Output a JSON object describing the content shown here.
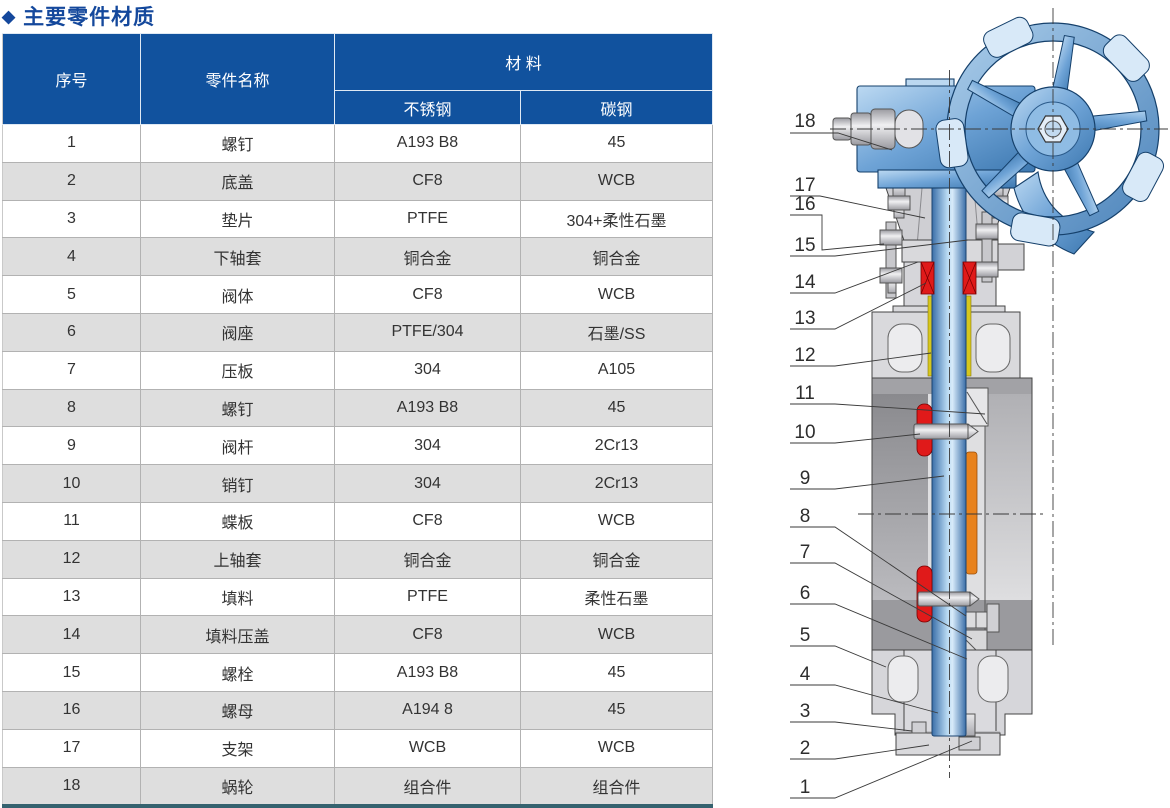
{
  "page": {
    "title_bullet": "◆",
    "title": "主要零件材质"
  },
  "table": {
    "col_no": "序号",
    "col_part": "零件名称",
    "col_material": "材  料",
    "col_stainless": "不锈钢",
    "col_carbon": "碳钢",
    "rows": [
      {
        "no": "1",
        "part": "螺钉",
        "ss": "A193 B8",
        "cs": "45"
      },
      {
        "no": "2",
        "part": "底盖",
        "ss": "CF8",
        "cs": "WCB"
      },
      {
        "no": "3",
        "part": "垫片",
        "ss": "PTFE",
        "cs": "304+柔性石墨"
      },
      {
        "no": "4",
        "part": "下轴套",
        "ss": "铜合金",
        "cs": "铜合金"
      },
      {
        "no": "5",
        "part": "阀体",
        "ss": "CF8",
        "cs": "WCB"
      },
      {
        "no": "6",
        "part": "阀座",
        "ss": "PTFE/304",
        "cs": "石墨/SS"
      },
      {
        "no": "7",
        "part": "压板",
        "ss": "304",
        "cs": "A105"
      },
      {
        "no": "8",
        "part": "螺钉",
        "ss": "A193 B8",
        "cs": "45"
      },
      {
        "no": "9",
        "part": "阀杆",
        "ss": "304",
        "cs": "2Cr13"
      },
      {
        "no": "10",
        "part": "销钉",
        "ss": "304",
        "cs": "2Cr13"
      },
      {
        "no": "11",
        "part": "蝶板",
        "ss": "CF8",
        "cs": "WCB"
      },
      {
        "no": "12",
        "part": "上轴套",
        "ss": "铜合金",
        "cs": "铜合金"
      },
      {
        "no": "13",
        "part": "填料",
        "ss": "PTFE",
        "cs": "柔性石墨"
      },
      {
        "no": "14",
        "part": "填料压盖",
        "ss": "CF8",
        "cs": "WCB"
      },
      {
        "no": "15",
        "part": "螺栓",
        "ss": "A193 B8",
        "cs": "45"
      },
      {
        "no": "16",
        "part": "螺母",
        "ss": "A194 8",
        "cs": "45"
      },
      {
        "no": "17",
        "part": "支架",
        "ss": "WCB",
        "cs": "WCB"
      },
      {
        "no": "18",
        "part": "蜗轮",
        "ss": "组合件",
        "cs": "组合件"
      }
    ]
  },
  "diagram": {
    "callouts": [
      "18",
      "17",
      "16",
      "15",
      "14",
      "13",
      "12",
      "11",
      "10",
      "9",
      "8",
      "7",
      "6",
      "5",
      "4",
      "3",
      "2",
      "1"
    ]
  },
  "colors": {
    "header_blue": "#11529e",
    "title_blue": "#14489c",
    "row_alt_gray": "#dedede",
    "table_bottom_bar": "#35626f",
    "stem_blue": "#3a6ea8",
    "packing_red": "#e01a1a",
    "bushing_yellow": "#d6c71e",
    "seat_orange": "#e8821c"
  }
}
